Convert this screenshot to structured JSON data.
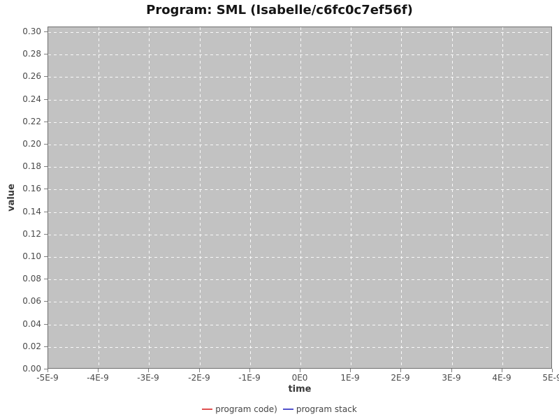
{
  "chart_data": {
    "type": "line",
    "title": "Program: SML (Isabelle/c6fc0c7ef56f)",
    "xlabel": "time",
    "ylabel": "value",
    "xlim": [
      -5e-09,
      5e-09
    ],
    "ylim": [
      0.0,
      0.3
    ],
    "x_ticks": [
      "-5E-9",
      "-4E-9",
      "-3E-9",
      "-2E-9",
      "-1E-9",
      "0E0",
      "1E-9",
      "2E-9",
      "3E-9",
      "4E-9",
      "5E-9"
    ],
    "y_ticks": [
      "0.00",
      "0.02",
      "0.04",
      "0.06",
      "0.08",
      "0.10",
      "0.12",
      "0.14",
      "0.16",
      "0.18",
      "0.20",
      "0.22",
      "0.24",
      "0.26",
      "0.28",
      "0.30"
    ],
    "grid": true,
    "legend_position": "bottom",
    "plot_bg": "#c2c2c2",
    "grid_color": "#ffffff",
    "series": [
      {
        "name": "program code)",
        "color": "#e04f4f",
        "values": []
      },
      {
        "name": "program stack",
        "color": "#5252cc",
        "values": []
      }
    ]
  }
}
